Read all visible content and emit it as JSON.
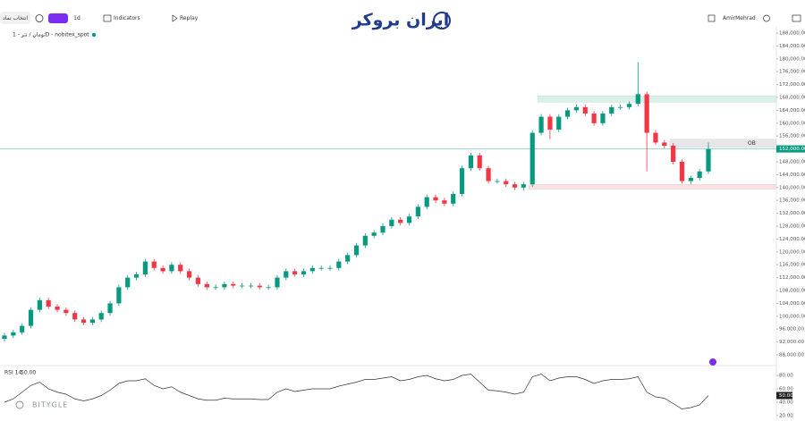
{
  "toolbar": {
    "symbol_search": "انتخاب نماد",
    "interval": "1d",
    "indicators": "Indicators",
    "replay": "Replay",
    "user": "AmirMehrad",
    "logo": "ایران بروکر",
    "watermark": "BITYGLE"
  },
  "chart_data": [
    {
      "type": "candlestick",
      "title": "تومان / تتر - 1D - nobitex_spot",
      "up_color": "#089981",
      "down_color": "#f23645",
      "open": [
        93000,
        94000,
        95000,
        97000,
        102000,
        105000,
        103000,
        102000,
        101000,
        99000,
        98000,
        99000,
        101000,
        104000,
        109000,
        112000,
        113000,
        117000,
        115000,
        114000,
        116000,
        114000,
        112000,
        110000,
        109000,
        109000,
        110000,
        109500,
        109500,
        109500,
        109000,
        109000,
        112000,
        114000,
        113000,
        114000,
        115000,
        115000,
        115000,
        117000,
        119000,
        122000,
        125000,
        126000,
        128000,
        130000,
        129000,
        131000,
        134000,
        137000,
        136000,
        135000,
        138000,
        146000,
        150000,
        146000,
        142000,
        142000,
        141000,
        140000,
        141000,
        157000,
        162000,
        158000,
        162000,
        164000,
        165000,
        163000,
        160000,
        163000,
        165000,
        165000,
        166000,
        169000,
        157000,
        154000,
        153000,
        148000,
        142000,
        143000,
        145000
      ],
      "high": [
        94800,
        95800,
        97800,
        102800,
        105800,
        105800,
        103800,
        102800,
        101800,
        99800,
        99800,
        101800,
        104800,
        109800,
        112800,
        113800,
        117800,
        117800,
        115800,
        116800,
        116800,
        114800,
        112800,
        110800,
        109800,
        110800,
        110800,
        110300,
        110300,
        110300,
        109800,
        112800,
        114800,
        114800,
        114800,
        115800,
        115800,
        115800,
        117800,
        119800,
        122800,
        125800,
        126800,
        128800,
        130800,
        130800,
        131800,
        134800,
        137800,
        137800,
        136800,
        138800,
        146800,
        150800,
        150800,
        146800,
        142800,
        142800,
        141800,
        141800,
        157800,
        162800,
        162800,
        162800,
        164800,
        165800,
        165800,
        163800,
        163800,
        165800,
        165800,
        166800,
        179000,
        169800,
        157800,
        154800,
        153800,
        148800,
        143800,
        145800,
        154000
      ],
      "low": [
        92200,
        93200,
        94200,
        96200,
        101200,
        102200,
        101200,
        100200,
        98200,
        97200,
        97200,
        98200,
        100200,
        103200,
        108200,
        111200,
        112200,
        114200,
        113200,
        113200,
        113200,
        111200,
        109200,
        108200,
        108200,
        108200,
        108700,
        108700,
        108700,
        108200,
        108200,
        108200,
        111200,
        112200,
        112200,
        113200,
        114200,
        114200,
        114200,
        116200,
        118200,
        121200,
        124200,
        125200,
        127200,
        128200,
        128200,
        130200,
        133200,
        135200,
        134200,
        134200,
        137200,
        145200,
        145200,
        141200,
        141200,
        140200,
        139200,
        139000,
        140200,
        156200,
        155000,
        157200,
        161200,
        163200,
        162200,
        159200,
        159200,
        162200,
        164200,
        164200,
        165200,
        145000,
        153200,
        152200,
        147200,
        141200,
        141000,
        142200,
        144200
      ],
      "close": [
        94000,
        95000,
        97000,
        102000,
        105000,
        103000,
        102000,
        101000,
        99000,
        98000,
        99000,
        101000,
        104000,
        109000,
        112000,
        113000,
        117000,
        115000,
        114000,
        116000,
        114000,
        112000,
        110000,
        109000,
        109000,
        110000,
        109500,
        109500,
        109500,
        109000,
        109000,
        112000,
        114000,
        113000,
        114000,
        115000,
        115000,
        115000,
        117000,
        119000,
        122000,
        125000,
        126000,
        128000,
        130000,
        129000,
        131000,
        134000,
        137000,
        136000,
        135000,
        138000,
        146000,
        150000,
        146000,
        142000,
        142000,
        141000,
        140000,
        141000,
        157000,
        162000,
        158000,
        162000,
        164000,
        165000,
        163000,
        160000,
        163000,
        165000,
        165000,
        166000,
        169000,
        157000,
        154000,
        153000,
        148000,
        142000,
        143000,
        145000,
        152000
      ],
      "last_price_label": "152,000.00",
      "zones": [
        {
          "from": 166500,
          "to": 168500,
          "color": "#d8f0ea"
        },
        {
          "label": "OB",
          "from": 152500,
          "to": 155000,
          "color": "#e6e6e8"
        },
        {
          "from": 139500,
          "to": 141000,
          "color": "#fbe0e2"
        }
      ],
      "ylim": [
        86000,
        190000
      ],
      "yticks": [
        {
          "value": 88000,
          "label": "88,000.00"
        },
        {
          "value": 92000,
          "label": "92,000.00"
        },
        {
          "value": 96000,
          "label": "96,000.00"
        },
        {
          "value": 100000,
          "label": "100,000.00"
        },
        {
          "value": 104000,
          "label": "104,000.00"
        },
        {
          "value": 108000,
          "label": "108,000.00"
        },
        {
          "value": 112000,
          "label": "112,000.00"
        },
        {
          "value": 116000,
          "label": "116,000.00"
        },
        {
          "value": 120000,
          "label": "120,000.00"
        },
        {
          "value": 124000,
          "label": "124,000.00"
        },
        {
          "value": 128000,
          "label": "128,000.00"
        },
        {
          "value": 132000,
          "label": "132,000.00"
        },
        {
          "value": 136000,
          "label": "136,000.00"
        },
        {
          "value": 140000,
          "label": "140,000.00"
        },
        {
          "value": 144000,
          "label": "144,000.00"
        },
        {
          "value": 148000,
          "label": "148,000.00"
        },
        {
          "value": 156000,
          "label": "156,000.00"
        },
        {
          "value": 160000,
          "label": "160,000.00"
        },
        {
          "value": 164000,
          "label": "164,000.00"
        },
        {
          "value": 168000,
          "label": "168,000.00"
        },
        {
          "value": 172000,
          "label": "172,000.00"
        },
        {
          "value": 176000,
          "label": "176,000.00"
        },
        {
          "value": 180000,
          "label": "180,000.00"
        },
        {
          "value": 184000,
          "label": "184,000.00"
        },
        {
          "value": 188000,
          "label": "188,000.00"
        }
      ]
    },
    {
      "type": "line",
      "title": "RSI 14",
      "last_value_label": "50.00",
      "color": "#333333",
      "values": [
        40,
        45,
        55,
        65,
        70,
        60,
        55,
        52,
        45,
        42,
        45,
        50,
        58,
        68,
        72,
        72,
        75,
        65,
        60,
        63,
        55,
        50,
        45,
        43,
        43,
        46,
        45,
        45,
        45,
        44,
        44,
        55,
        60,
        56,
        58,
        60,
        60,
        60,
        64,
        67,
        70,
        74,
        74,
        76,
        78,
        72,
        74,
        78,
        80,
        75,
        72,
        74,
        80,
        82,
        70,
        58,
        57,
        55,
        52,
        55,
        78,
        82,
        72,
        76,
        78,
        78,
        74,
        68,
        72,
        74,
        74,
        75,
        78,
        55,
        48,
        46,
        38,
        30,
        32,
        36,
        50
      ],
      "ylim": [
        12,
        93
      ],
      "yticks": [
        {
          "value": 20,
          "label": "20.00"
        },
        {
          "value": 40,
          "label": "40.00"
        },
        {
          "value": 60,
          "label": "60.00"
        },
        {
          "value": 80,
          "label": "80.00"
        }
      ]
    }
  ]
}
